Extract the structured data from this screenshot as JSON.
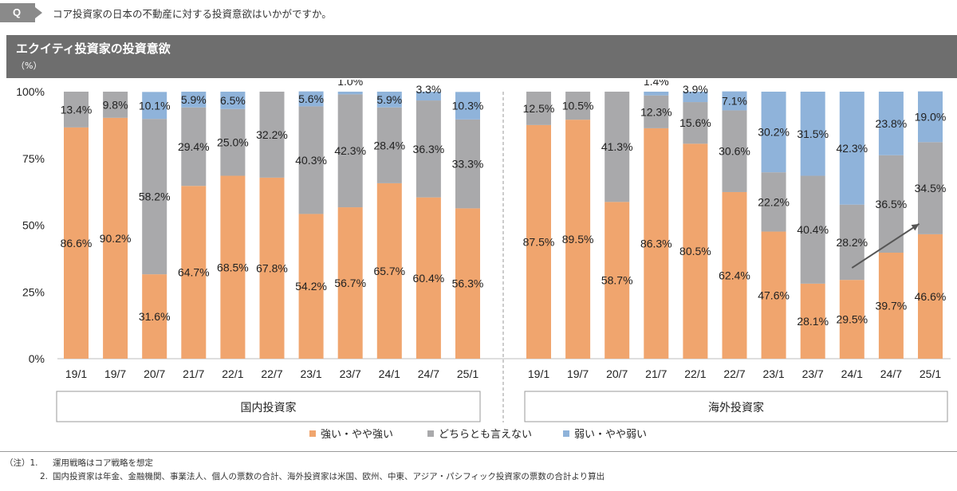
{
  "question": {
    "badge": "Q",
    "text": "コア投資家の日本の不動産に対する投資意欲はいかがですか。"
  },
  "banner": {
    "title": "エクイティ投資家の投資意欲",
    "unit": "（%）"
  },
  "colors": {
    "strong": "#f0a56e",
    "neutral": "#a9a9ab",
    "weak": "#8fb3da",
    "banner": "#6e6e6e"
  },
  "chart_data": {
    "type": "bar",
    "stacked": true,
    "ylim": [
      0,
      100
    ],
    "yticks": [
      "0%",
      "25%",
      "50%",
      "75%",
      "100%"
    ],
    "legend_position": "bottom",
    "legend": [
      "強い・やや強い",
      "どちらとも言えない",
      "弱い・やや弱い"
    ],
    "groups": [
      {
        "label": "国内投資家",
        "categories": [
          "19/1",
          "19/7",
          "20/7",
          "21/7",
          "22/1",
          "22/7",
          "23/1",
          "23/7",
          "24/1",
          "24/7",
          "25/1"
        ],
        "series": [
          {
            "name": "強い・やや強い",
            "values": [
              86.6,
              90.2,
              31.6,
              64.7,
              68.5,
              67.8,
              54.2,
              56.7,
              65.7,
              60.4,
              56.3
            ]
          },
          {
            "name": "どちらとも言えない",
            "values": [
              13.4,
              9.8,
              58.2,
              29.4,
              25.0,
              32.2,
              40.3,
              42.3,
              28.4,
              36.3,
              33.3
            ]
          },
          {
            "name": "弱い・やや弱い",
            "values": [
              0,
              0,
              10.1,
              5.9,
              6.5,
              0,
              5.6,
              1.0,
              5.9,
              3.3,
              10.3
            ]
          }
        ],
        "labels": [
          [
            "86.6%",
            "90.2%",
            "31.6%",
            "64.7%",
            "68.5%",
            "67.8%",
            "54.2%",
            "56.7%",
            "65.7%",
            "60.4%",
            "56.3%"
          ],
          [
            "13.4%",
            "9.8%",
            "58.2%",
            "29.4%",
            "25.0%",
            "32.2%",
            "40.3%",
            "42.3%",
            "28.4%",
            "36.3%",
            "33.3%"
          ],
          [
            "",
            "",
            "10.1%",
            "5.9%",
            "6.5%",
            "",
            "5.6%",
            "1.0%",
            "5.9%",
            "3.3%",
            "10.3%"
          ]
        ]
      },
      {
        "label": "海外投資家",
        "categories": [
          "19/1",
          "19/7",
          "20/7",
          "21/7",
          "22/1",
          "22/7",
          "23/1",
          "23/7",
          "24/1",
          "24/7",
          "25/1"
        ],
        "series": [
          {
            "name": "強い・やや強い",
            "values": [
              87.5,
              89.5,
              58.7,
              86.3,
              80.5,
              62.4,
              47.6,
              28.1,
              29.5,
              39.7,
              46.6
            ]
          },
          {
            "name": "どちらとも言えない",
            "values": [
              12.5,
              10.5,
              41.3,
              12.3,
              15.6,
              30.6,
              22.2,
              40.4,
              28.2,
              36.5,
              34.5
            ]
          },
          {
            "name": "弱い・やや弱い",
            "values": [
              0,
              0,
              0,
              1.4,
              3.9,
              7.1,
              30.2,
              31.5,
              42.3,
              23.8,
              19.0
            ]
          }
        ],
        "labels": [
          [
            "87.5%",
            "89.5%",
            "58.7%",
            "86.3%",
            "80.5%",
            "62.4%",
            "47.6%",
            "28.1%",
            "29.5%",
            "39.7%",
            "46.6%"
          ],
          [
            "12.5%",
            "10.5%",
            "41.3%",
            "12.3%",
            "15.6%",
            "30.6%",
            "22.2%",
            "40.4%",
            "28.2%",
            "36.5%",
            "34.5%"
          ],
          [
            "",
            "",
            "",
            "1.4%",
            "3.9%",
            "7.1%",
            "30.2%",
            "31.5%",
            "42.3%",
            "23.8%",
            "19.0%"
          ]
        ]
      }
    ],
    "annotation": {
      "type": "trend-arrow",
      "group": "海外投資家",
      "from": "24/1",
      "to": "25/1"
    }
  },
  "notes": {
    "label": "（注）1.",
    "line1": "運用戦略はコア戦略を想定",
    "line2_number": "2.",
    "line2": "国内投資家は年金、金融機関、事業法人、個人の票数の合計、海外投資家は米国、欧州、中東、アジア・パシフィック投資家の票数の合計より算出"
  }
}
